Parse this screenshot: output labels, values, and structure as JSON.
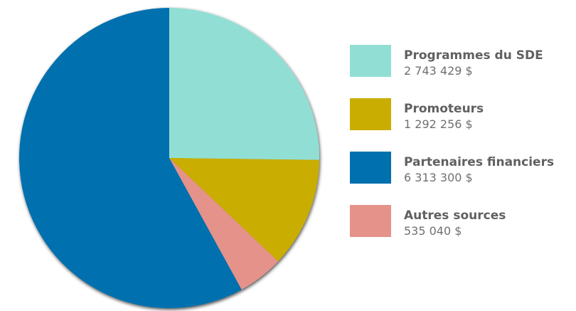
{
  "chart_data": {
    "type": "pie",
    "categories": [
      "Programmes du SDE",
      "Promoteurs",
      "Autres sources",
      "Partenaires financiers"
    ],
    "values": [
      2743429,
      1292256,
      535040,
      6313300
    ],
    "value_labels": [
      "2 743 429 $",
      "1 292 256 $",
      "535 040  $",
      "6 313 300  $"
    ],
    "colors": [
      "#91dfd4",
      "#c9ad00",
      "#e5928a",
      "#0070ae"
    ],
    "legend": "right"
  }
}
